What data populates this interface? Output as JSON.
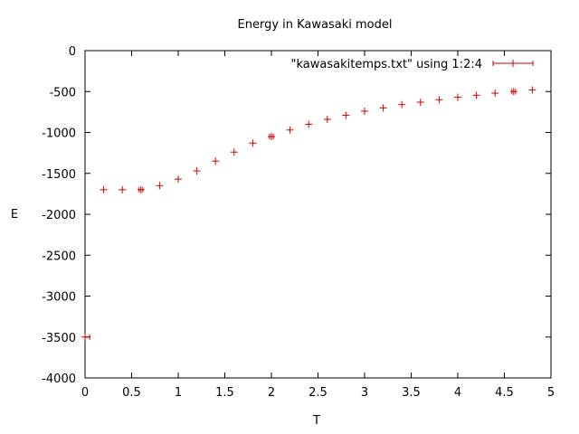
{
  "chart_data": {
    "type": "scatter",
    "title": "Energy in Kawasaki model",
    "xlabel": "T",
    "ylabel": "E",
    "xlim": [
      0,
      5
    ],
    "ylim": [
      -4000,
      0
    ],
    "xticks": [
      "0",
      "0.5",
      "1",
      "1.5",
      "2",
      "2.5",
      "3",
      "3.5",
      "4",
      "4.5",
      "5"
    ],
    "yticks": [
      "0",
      "-500",
      "-1000",
      "-1500",
      "-2000",
      "-2500",
      "-3000",
      "-3500",
      "-4000"
    ],
    "grid": false,
    "legend_position": "top-right",
    "series": [
      {
        "name": "\"kawasakitemps.txt\" using 1:2:4",
        "color": "#d40000",
        "marker": "plus",
        "error_bars": "x",
        "x": [
          0.0,
          0.2,
          0.4,
          0.6,
          0.8,
          1.0,
          1.2,
          1.4,
          1.6,
          1.8,
          2.0,
          2.2,
          2.4,
          2.6,
          2.8,
          3.0,
          3.2,
          3.4,
          3.6,
          3.8,
          4.0,
          4.2,
          4.4,
          4.6,
          4.8
        ],
        "y": [
          -3500,
          -1700,
          -1700,
          -1700,
          -1650,
          -1570,
          -1470,
          -1350,
          -1240,
          -1130,
          -1050,
          -970,
          -900,
          -840,
          -790,
          -740,
          -700,
          -660,
          -630,
          -600,
          -570,
          -545,
          -520,
          -500,
          -480
        ],
        "xerr": [
          0.05,
          0.0,
          0.0,
          0.02,
          0.0,
          0.0,
          0.0,
          0.0,
          0.0,
          0.0,
          0.02,
          0.0,
          0.0,
          0.0,
          0.0,
          0.0,
          0.0,
          0.0,
          0.0,
          0.0,
          0.0,
          0.0,
          0.0,
          0.02,
          0.0
        ]
      }
    ]
  }
}
